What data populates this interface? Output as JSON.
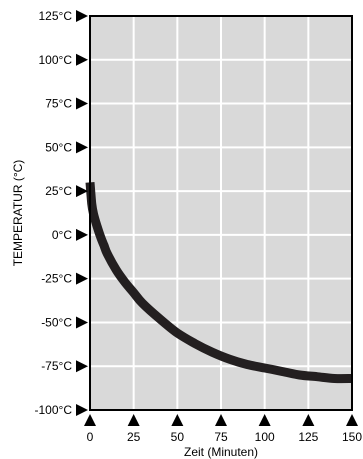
{
  "chart_data": {
    "type": "line",
    "title": "",
    "xlabel": "Zeit (Minuten)",
    "ylabel": "TEMPERATUR (°C)",
    "xlim": [
      0,
      150
    ],
    "ylim": [
      -100,
      125
    ],
    "x_ticks": [
      0,
      25,
      50,
      75,
      100,
      125,
      150
    ],
    "x_tick_labels": [
      "0",
      "25",
      "50",
      "75",
      "100",
      "125",
      "150"
    ],
    "y_ticks": [
      125,
      100,
      75,
      50,
      25,
      0,
      -25,
      -50,
      -75,
      -100
    ],
    "y_tick_labels": [
      "125°C",
      "100°C",
      "75°C",
      "50°C",
      "25°C",
      "0°C",
      "-25°C",
      "-50°C",
      "-75°C",
      "-100°C"
    ],
    "grid": true,
    "colors": {
      "plot_background": "#d9d9d9",
      "grid": "#ffffff",
      "line": "#231f20",
      "axis": "#000000"
    },
    "series": [
      {
        "x": [
          0,
          1,
          2,
          4,
          6,
          8,
          10,
          15,
          20,
          25,
          30,
          40,
          50,
          60,
          70,
          80,
          90,
          100,
          110,
          120,
          130,
          140,
          150
        ],
        "y": [
          30,
          18,
          12,
          5,
          -1,
          -6,
          -11,
          -20,
          -27,
          -33,
          -39,
          -48,
          -56,
          -62,
          -67,
          -71,
          -74,
          -76,
          -78,
          -80,
          -81,
          -82,
          -82
        ]
      }
    ]
  }
}
